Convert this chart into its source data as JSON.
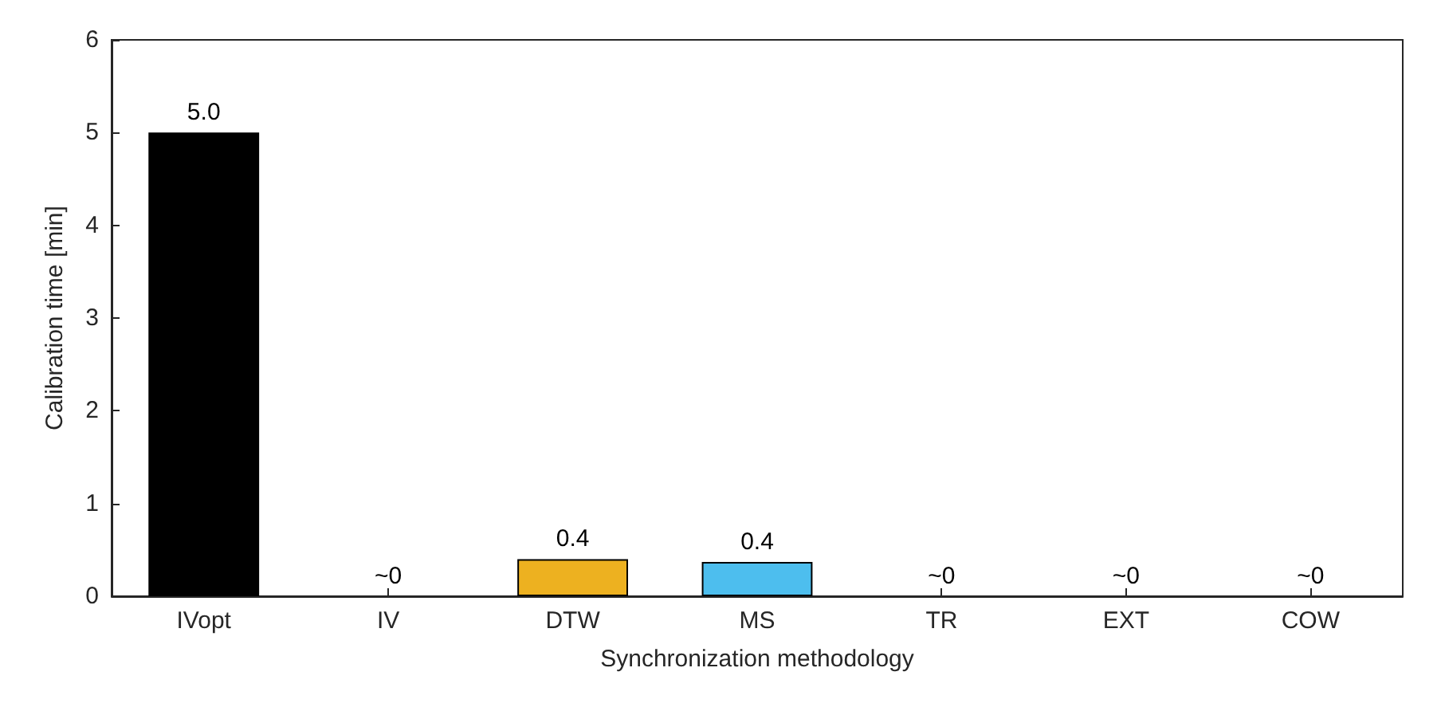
{
  "chart_data": {
    "type": "bar",
    "xlabel": "Synchronization methodology",
    "ylabel": "Calibration time [min]",
    "categories": [
      "IVopt",
      "IV",
      "DTW",
      "MS",
      "TR",
      "EXT",
      "COW"
    ],
    "values": [
      5.0,
      0,
      0.4,
      0.37,
      0,
      0,
      0
    ],
    "colors": [
      "#000000",
      null,
      "#edb120",
      "#4dbeee",
      null,
      null,
      null
    ],
    "value_labels": [
      "5.0",
      "~0",
      "0.4",
      "0.4",
      "~0",
      "~0",
      "~0"
    ],
    "ylim": [
      0,
      6
    ],
    "yticks": [
      0,
      1,
      2,
      3,
      4,
      5,
      6
    ],
    "grid": false
  }
}
